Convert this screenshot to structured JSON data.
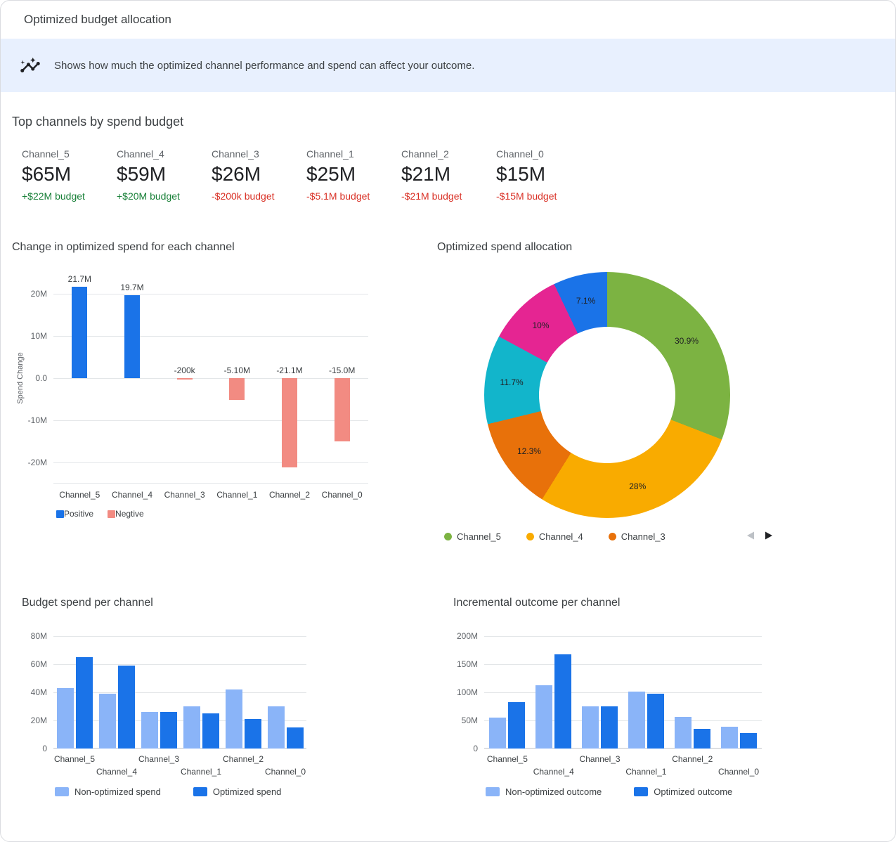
{
  "header": {
    "title": "Optimized budget allocation"
  },
  "banner": {
    "icon": "insights-icon",
    "text": "Shows how much the optimized channel performance and spend can affect your outcome."
  },
  "top_channels": {
    "title": "Top channels by spend budget",
    "cards": [
      {
        "name": "Channel_5",
        "value": "$65M",
        "delta": "+$22M budget",
        "trend": "positive"
      },
      {
        "name": "Channel_4",
        "value": "$59M",
        "delta": "+$20M budget",
        "trend": "positive"
      },
      {
        "name": "Channel_3",
        "value": "$26M",
        "delta": "-$200k budget",
        "trend": "negative"
      },
      {
        "name": "Channel_1",
        "value": "$25M",
        "delta": "-$5.1M budget",
        "trend": "negative"
      },
      {
        "name": "Channel_2",
        "value": "$21M",
        "delta": "-$21M budget",
        "trend": "negative"
      },
      {
        "name": "Channel_0",
        "value": "$15M",
        "delta": "-$15M budget",
        "trend": "negative"
      }
    ]
  },
  "colors": {
    "banner_bg": "#e8f0fe",
    "positive_text": "#188038",
    "negative_text": "#d93025",
    "bar_positive": "#1a73e8",
    "bar_negative": "#f28b82",
    "bar_light_blue": "#8ab4f8",
    "bar_dark_blue": "#1a73e8"
  },
  "icons": {
    "banner": "insights-icon",
    "carousel_prev": "prev-triangle-icon",
    "carousel_next": "next-triangle-icon"
  },
  "chart_data": [
    {
      "id": "spend_change",
      "type": "bar",
      "title": "Change in optimized spend for each channel",
      "ylabel": "Spend Change",
      "categories": [
        "Channel_5",
        "Channel_4",
        "Channel_3",
        "Channel_1",
        "Channel_2",
        "Channel_0"
      ],
      "values": [
        21.7,
        19.7,
        -0.2,
        -5.1,
        -21.1,
        -15.0
      ],
      "value_labels": [
        "21.7M",
        "19.7M",
        "-200k",
        "-5.10M",
        "-21.1M",
        "-15.0M"
      ],
      "unit": "M",
      "ylim": [
        -25,
        25
      ],
      "grid": true,
      "yticks": [
        {
          "v": 20,
          "label": "20M"
        },
        {
          "v": 10,
          "label": "10M"
        },
        {
          "v": 0,
          "label": "0.0"
        },
        {
          "v": -10,
          "label": "-10M"
        },
        {
          "v": -20,
          "label": "-20M"
        }
      ],
      "legend": [
        {
          "label": "Positive",
          "color": "#1a73e8"
        },
        {
          "label": "Negtive",
          "color": "#f28b82"
        }
      ],
      "legend_position": "bottom"
    },
    {
      "id": "spend_allocation",
      "type": "pie",
      "title": "Optimized spend allocation",
      "start_angle": -25.6,
      "slices": [
        {
          "pct": 7.1,
          "label": "7.1%",
          "color": "#1a73e8"
        },
        {
          "pct": 30.9,
          "label": "30.9%",
          "color": "#7cb342"
        },
        {
          "pct": 28,
          "label": "28%",
          "color": "#f9ab00"
        },
        {
          "pct": 12.3,
          "label": "12.3%",
          "color": "#e8710a"
        },
        {
          "pct": 11.7,
          "label": "11.7%",
          "color": "#12b5cb"
        },
        {
          "pct": 10,
          "label": "10%",
          "color": "#e52592"
        }
      ],
      "legend": [
        {
          "label": "Channel_5",
          "color": "#7cb342"
        },
        {
          "label": "Channel_4",
          "color": "#f9ab00"
        },
        {
          "label": "Channel_3",
          "color": "#e8710a"
        }
      ],
      "legend_position": "bottom",
      "legend_paginated": true
    },
    {
      "id": "budget_spend",
      "type": "bar",
      "title": "Budget spend per channel",
      "categories": [
        "Channel_5",
        "Channel_4",
        "Channel_3",
        "Channel_1",
        "Channel_2",
        "Channel_0"
      ],
      "series": [
        {
          "name": "Non-optimized spend",
          "color": "#8ab4f8",
          "values": [
            43,
            39,
            26,
            30,
            42,
            30
          ]
        },
        {
          "name": "Optimized spend",
          "color": "#1a73e8",
          "values": [
            65,
            59,
            26,
            25,
            21,
            15
          ]
        }
      ],
      "unit": "M",
      "ylim": [
        0,
        85
      ],
      "grid": true,
      "yticks": [
        {
          "v": 0,
          "label": "0"
        },
        {
          "v": 20,
          "label": "20M"
        },
        {
          "v": 40,
          "label": "40M"
        },
        {
          "v": 60,
          "label": "60M"
        },
        {
          "v": 80,
          "label": "80M"
        }
      ],
      "legend_position": "bottom"
    },
    {
      "id": "incremental_outcome",
      "type": "bar",
      "title": "Incremental outcome per channel",
      "categories": [
        "Channel_5",
        "Channel_4",
        "Channel_3",
        "Channel_1",
        "Channel_2",
        "Channel_0"
      ],
      "series": [
        {
          "name": "Non-optimized outcome",
          "color": "#8ab4f8",
          "values": [
            55,
            112,
            75,
            101,
            56,
            39
          ]
        },
        {
          "name": "Optimized outcome",
          "color": "#1a73e8",
          "values": [
            83,
            167,
            75,
            97,
            35,
            27
          ]
        }
      ],
      "unit": "M",
      "ylim": [
        0,
        212.5
      ],
      "grid": true,
      "yticks": [
        {
          "v": 0,
          "label": "0"
        },
        {
          "v": 50,
          "label": "50M"
        },
        {
          "v": 100,
          "label": "100M"
        },
        {
          "v": 150,
          "label": "150M"
        },
        {
          "v": 200,
          "label": "200M"
        }
      ],
      "legend_position": "bottom"
    }
  ]
}
